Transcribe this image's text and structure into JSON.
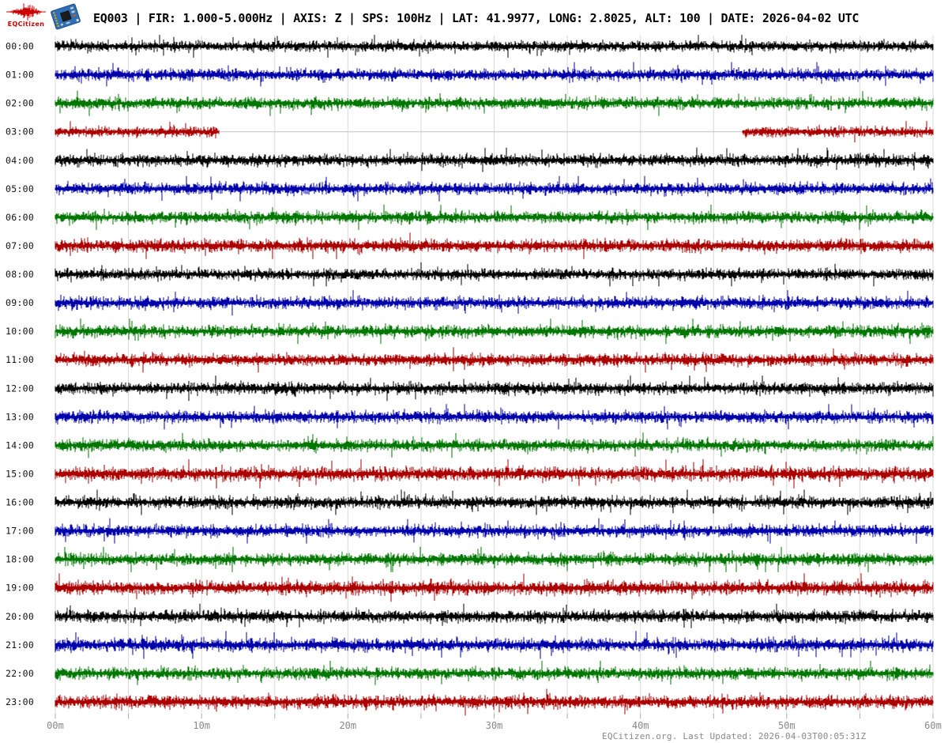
{
  "header": {
    "logo_text": "EQCitizen",
    "logo_color": "#CC0000",
    "title": "EQ003 | FIR: 1.000-5.000Hz | AXIS: Z | SPS: 100Hz | LAT: 41.9977, LONG: 2.8025, ALT: 100 | DATE: 2026-04-02 UTC"
  },
  "footer": {
    "text": "EQCitizen.org. Last Updated: 2026-04-03T00:05:31Z"
  },
  "chart_data": {
    "type": "line",
    "chart_kind": "helicorder_day_plot",
    "title": "EQ003 | FIR: 1.000-5.000Hz | AXIS: Z | SPS: 100Hz | LAT: 41.9977, LONG: 2.8025, ALT: 100 | DATE: 2026-04-02 UTC",
    "x_axis": {
      "unit": "minutes",
      "range": [
        0,
        60
      ],
      "major_tick_interval_min": 10,
      "minor_grid_interval_min": 5,
      "tick_labels": [
        "00m",
        "10m",
        "20m",
        "30m",
        "40m",
        "50m",
        "60m"
      ],
      "grid": true
    },
    "y_axis": {
      "unit": "hour of day (UTC)",
      "tick_labels": [
        "00:00",
        "01:00",
        "02:00",
        "03:00",
        "04:00",
        "05:00",
        "06:00",
        "07:00",
        "08:00",
        "09:00",
        "10:00",
        "11:00",
        "12:00",
        "13:00",
        "14:00",
        "15:00",
        "16:00",
        "17:00",
        "18:00",
        "19:00",
        "20:00",
        "21:00",
        "22:00",
        "23:00"
      ]
    },
    "trace_color_cycle": [
      "#000000",
      "#0000AA",
      "#007700",
      "#AA0000"
    ],
    "gridline_color": "#D9D9D9",
    "tick_color": "#AAAAAA",
    "tick_label_color": "#888888",
    "row_label_color": "#111111",
    "gap_line_color": "#C8C8C8",
    "rows": [
      {
        "time": "00:00",
        "color": "#000000",
        "segments": [
          [
            0,
            60
          ]
        ],
        "amp": 0.9
      },
      {
        "time": "01:00",
        "color": "#0000AA",
        "segments": [
          [
            0,
            60
          ]
        ],
        "amp": 1.0
      },
      {
        "time": "02:00",
        "color": "#007700",
        "segments": [
          [
            0,
            60
          ]
        ],
        "amp": 1.0
      },
      {
        "time": "03:00",
        "color": "#AA0000",
        "segments": [
          [
            0,
            11.2
          ],
          [
            47.0,
            60
          ]
        ],
        "gap": [
          11.2,
          47.0
        ],
        "amp": 0.85
      },
      {
        "time": "04:00",
        "color": "#000000",
        "segments": [
          [
            0,
            60
          ]
        ],
        "amp": 1.0
      },
      {
        "time": "05:00",
        "color": "#0000AA",
        "segments": [
          [
            0,
            60
          ]
        ],
        "amp": 1.0
      },
      {
        "time": "06:00",
        "color": "#007700",
        "segments": [
          [
            0,
            60
          ]
        ],
        "amp": 1.0
      },
      {
        "time": "07:00",
        "color": "#AA0000",
        "segments": [
          [
            0,
            60
          ]
        ],
        "amp": 1.05
      },
      {
        "time": "08:00",
        "color": "#000000",
        "segments": [
          [
            0,
            60
          ]
        ],
        "amp": 0.95
      },
      {
        "time": "09:00",
        "color": "#0000AA",
        "segments": [
          [
            0,
            60
          ]
        ],
        "amp": 1.0
      },
      {
        "time": "10:00",
        "color": "#007700",
        "segments": [
          [
            0,
            60
          ]
        ],
        "amp": 1.0
      },
      {
        "time": "11:00",
        "color": "#AA0000",
        "segments": [
          [
            0,
            60
          ]
        ],
        "amp": 1.0
      },
      {
        "time": "12:00",
        "color": "#000000",
        "segments": [
          [
            0,
            60
          ]
        ],
        "amp": 1.0
      },
      {
        "time": "13:00",
        "color": "#0000AA",
        "segments": [
          [
            0,
            60
          ]
        ],
        "amp": 1.0
      },
      {
        "time": "14:00",
        "color": "#007700",
        "segments": [
          [
            0,
            60
          ]
        ],
        "amp": 1.0
      },
      {
        "time": "15:00",
        "color": "#AA0000",
        "segments": [
          [
            0,
            60
          ]
        ],
        "amp": 1.15
      },
      {
        "time": "16:00",
        "color": "#000000",
        "segments": [
          [
            0,
            60
          ]
        ],
        "amp": 1.0
      },
      {
        "time": "17:00",
        "color": "#0000AA",
        "segments": [
          [
            0,
            60
          ]
        ],
        "amp": 1.0
      },
      {
        "time": "18:00",
        "color": "#007700",
        "segments": [
          [
            0,
            60
          ]
        ],
        "amp": 1.0
      },
      {
        "time": "19:00",
        "color": "#AA0000",
        "segments": [
          [
            0,
            60
          ]
        ],
        "amp": 1.15
      },
      {
        "time": "20:00",
        "color": "#000000",
        "segments": [
          [
            0,
            60
          ]
        ],
        "amp": 1.0
      },
      {
        "time": "21:00",
        "color": "#0000AA",
        "segments": [
          [
            0,
            60
          ]
        ],
        "amp": 1.1
      },
      {
        "time": "22:00",
        "color": "#007700",
        "segments": [
          [
            0,
            60
          ]
        ],
        "amp": 1.0
      },
      {
        "time": "23:00",
        "color": "#AA0000",
        "segments": [
          [
            0,
            60
          ]
        ],
        "amp": 1.1
      }
    ]
  }
}
